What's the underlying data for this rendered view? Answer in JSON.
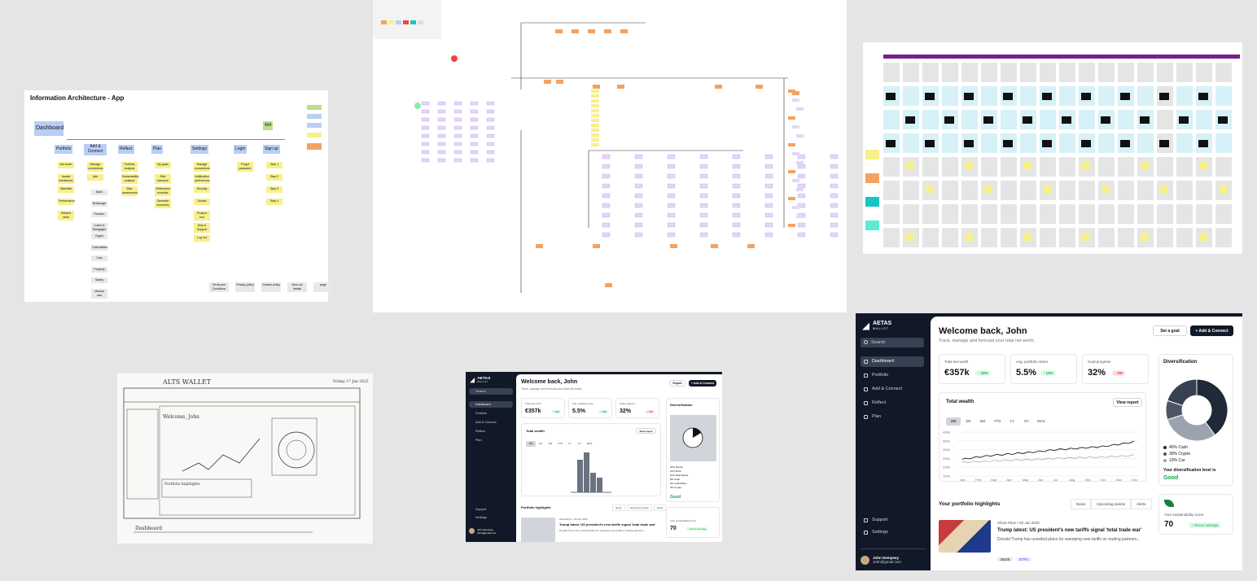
{
  "ia": {
    "title": "Information Architecture - App",
    "root": "Dashboard",
    "badge": "404",
    "sections": [
      {
        "label": "Portfolio",
        "items": [
          "Net worth",
          "Assets breakdown",
          "Watchlist",
          "Performance",
          "Related news"
        ]
      },
      {
        "label": "Add & Connect",
        "items": [
          "Manage connections",
          "Add"
        ],
        "subitems": [
          "Bank",
          "Brokerage",
          "Pension",
          "Loans & Mortgages",
          "Crypto",
          "Collectables",
          "Cars",
          "Property",
          "Salary",
          "Manual add"
        ]
      },
      {
        "label": "Reflect",
        "items": [
          "Portfolio analysis",
          "Sustainability analysis",
          "Risk assessment"
        ]
      },
      {
        "label": "Plan",
        "items": [
          "My goals",
          "Risk tolerance",
          "Retirement modeller",
          "Generate scenarios"
        ]
      },
      {
        "label": "Settings",
        "items": [
          "Manage connections",
          "Notification preferences",
          "Security",
          "Guides",
          "Product tour",
          "Help & Support",
          "Log out"
        ]
      },
      {
        "label": "Login",
        "items": [
          "Forgot password"
        ]
      },
      {
        "label": "Sign up",
        "items": [
          "Step 1",
          "Step 2",
          "Step 3",
          "Step 4"
        ]
      }
    ],
    "footer": [
      "Terms and Conditions",
      "Privacy policy",
      "Contact policy",
      "View our details",
      "page"
    ]
  },
  "sketch": {
    "title": "ALTS WALLET",
    "date": "Friday 17 Jan 2025",
    "greeting": "Welcome, John",
    "label": "Dashboard",
    "portfolio": "Portfolio highlights"
  },
  "large": {
    "brand": "AETAS",
    "brand_sub": "WALLET",
    "search": "Search",
    "nav": [
      "Dashboard",
      "Portfolio",
      "Add & Connect",
      "Reflect",
      "Plan"
    ],
    "nav2": [
      "Support",
      "Settings"
    ],
    "user_name": "John Dempsey",
    "user_email": "John@gmail.com",
    "welcome": "Welcome back, John",
    "subtitle": "Track, manage and forecast your total net worth.",
    "set_goal": "Set a goal",
    "add_connect": "+ Add & Connect",
    "kpis": [
      {
        "label": "Total net worth",
        "value": "€357k",
        "delta": "↑ 10%"
      },
      {
        "label": "Avg. portfolio return",
        "value": "5.5%",
        "delta": "↑ 12%"
      },
      {
        "label": "Goal progress",
        "value": "32%",
        "delta": "↓ 2%"
      }
    ],
    "wealth_title": "Total wealth",
    "view_report": "View report",
    "ranges": [
      "1W",
      "1M",
      "6M",
      "YTD",
      "1Y",
      "5Y",
      "MAX"
    ],
    "diversification": "Diversification",
    "div_legend": [
      "40% Cash",
      "30% Crypto",
      "10% Car"
    ],
    "div_note": "Your diversification level is",
    "div_level": "Good",
    "sustain_label": "Your sustainability score",
    "sustain_value": "70",
    "sustain_delta": "↑ Above average",
    "highlights": "Your portfolio highlights",
    "high_tabs": [
      "News",
      "Upcoming events",
      "Alerts"
    ],
    "news_meta": "Olivia Rhye • 20 Jan 2025",
    "news_title": "Trump latest: US president's new tariffs signal 'total trade war'",
    "news_body": "Donald Trump has unveiled plans for sweeping new tariffs on trading partners...",
    "news_tags": [
      "Stock",
      "ETFs"
    ]
  },
  "small": {
    "welcome": "Welcome back, John",
    "subtitle": "Track, manage and forecast your total net worth.",
    "export": "Export",
    "kpis": [
      {
        "label": "Total net worth",
        "value": "€357k",
        "delta": "↑ 10%"
      },
      {
        "label": "Avg. portfolio return",
        "value": "5.5%",
        "delta": "↑ 12%"
      },
      {
        "label": "Goal progress",
        "value": "32%",
        "delta": "↓ 2%"
      }
    ],
    "div_legend": [
      "40% Stocks",
      "15% ETFs",
      "10% Real Estate",
      "8% Cash",
      "6% Collectibles",
      "4% Crypto"
    ],
    "highlights": "Portfolio highlights",
    "high_tabs": [
      "News",
      "Upcoming events",
      "Alerts"
    ],
    "news_meta": "Olivia Rhye • 20 Jan 2025",
    "news_body": "Donald Trump has unveiled plans for sweeping new tariffs on trading partners..."
  },
  "chart_data": {
    "type": "line",
    "title": "Total wealth",
    "x": [
      "Jan",
      "Feb",
      "Mar",
      "Apr",
      "May",
      "Jun",
      "Jul",
      "Aug",
      "Sep",
      "Oct",
      "Nov",
      "Dec"
    ],
    "yticks": [
      "400k",
      "350k",
      "300k",
      "250k",
      "200k",
      "150k"
    ],
    "series": [
      {
        "values": [
          245,
          258,
          268,
          275,
          282,
          290,
          300,
          305,
          312,
          318,
          330,
          345
        ]
      },
      {
        "values": [
          228,
          232,
          236,
          240,
          242,
          246,
          250,
          253,
          256,
          258,
          262,
          268
        ]
      }
    ]
  },
  "pie": {
    "type": "pie",
    "values": [
      40,
      30,
      10,
      20
    ]
  },
  "colors": {
    "sticky": "#f7f08c",
    "blue": "#b9cef5",
    "purple": "#7a1e8c",
    "navy": "#111827",
    "green": "#16a34a",
    "red": "#dc2626"
  }
}
